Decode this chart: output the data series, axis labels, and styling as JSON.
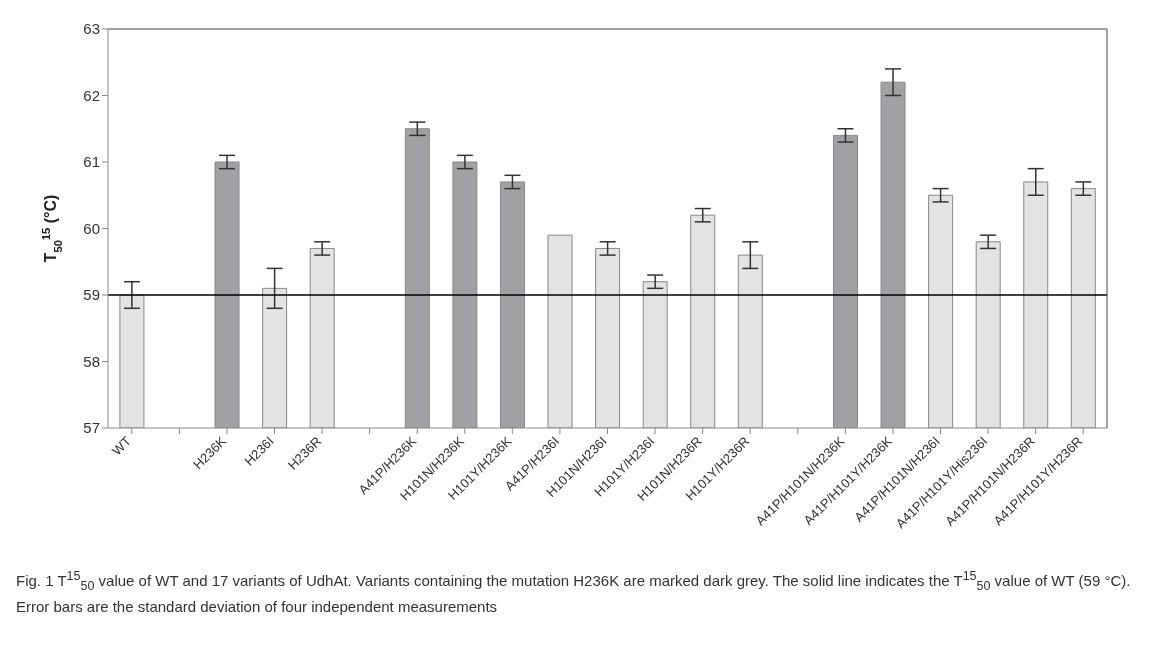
{
  "chart_data": {
    "type": "bar",
    "ylabel": "T$_{50}$$^{15}$ (°C)",
    "categories": [
      "WT",
      null,
      "H236K",
      "H236I",
      "H236R",
      null,
      "A41P/H236K",
      "H101N/H236K",
      "H101Y/H236K",
      "A41P/H236I",
      "H101N/H236I",
      "H101Y/H236I",
      "H101N/H236R",
      "H101Y/H236R",
      null,
      "A41P/H101N/H236K",
      "A41P/H101Y/H236K",
      "A41P/H101N/H236I",
      "A41P/H101Y/His236I",
      "A41P/H101N/H236R",
      "A41P/H101Y/H236R"
    ],
    "values": [
      59.0,
      null,
      61.0,
      59.1,
      59.7,
      null,
      61.5,
      61.0,
      60.7,
      59.9,
      59.7,
      59.2,
      60.2,
      59.6,
      null,
      61.4,
      62.2,
      60.5,
      59.8,
      60.7,
      60.6
    ],
    "errors": [
      0.2,
      null,
      0.1,
      0.3,
      0.1,
      null,
      0.1,
      0.1,
      0.1,
      0,
      0.1,
      0.1,
      0.1,
      0.2,
      null,
      0.1,
      0.2,
      0.1,
      0.1,
      0.2,
      0.1
    ],
    "colors": [
      "#e1e3e5",
      "#e1e3e5",
      "#9fa1a4",
      "#e1e3e5",
      "#e1e3e5",
      "#e1e3e5",
      "#9fa1a4",
      "#9fa1a4",
      "#9fa1a4",
      "#e1e3e5",
      "#e1e3e5",
      "#e1e3e5",
      "#e1e3e5",
      "#e1e3e5",
      "#e1e3e5",
      "#9fa1a4",
      "#9fa1a4",
      "#e1e3e5",
      "#e1e3e5",
      "#e1e3e5",
      "#e1e3e5"
    ],
    "ylim": [
      57,
      63
    ],
    "yticks": [
      57,
      58,
      59,
      60,
      61,
      62,
      63
    ],
    "ref_lines": [
      {
        "axis": "y",
        "value": 59,
        "color": "#000000"
      }
    ],
    "annotations": [
      "Fig. 1 T$^{15}$$_{50}$ value of WT and 17 variants of UdhAt. Variants containing the mutation H236K are marked dark grey. The solid line indicates the T$^{15}$$_{50}$ value of WT (59 °C). Error bars are the standard deviation of four independent measurements"
    ]
  }
}
